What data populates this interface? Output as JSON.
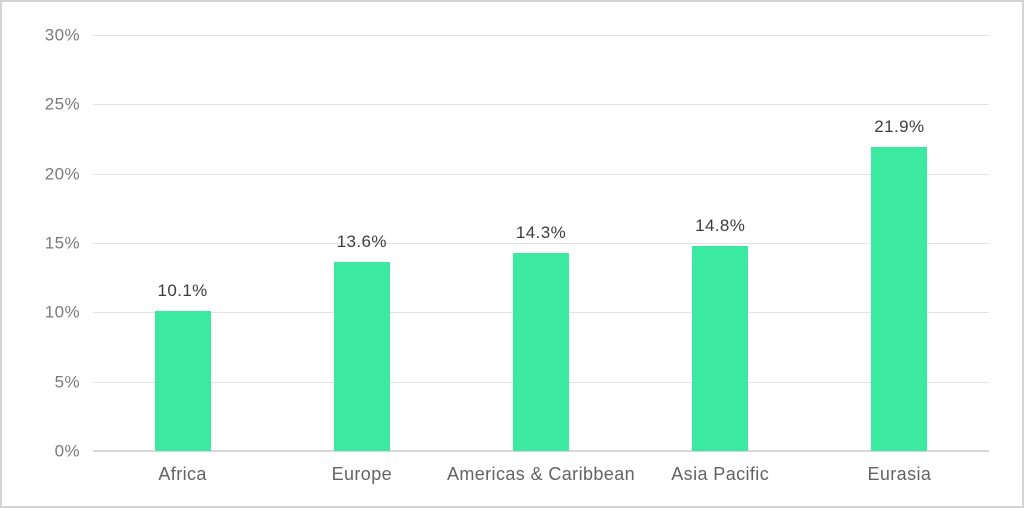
{
  "chart": {
    "background_color": "#ffffff",
    "border_color": "#d4d4d4",
    "bar_color": "#3ce9a0",
    "gridline_color": "#e3e3e3",
    "baseline_color": "#d8d8d8",
    "y_tick_label_color": "#7a7a7a",
    "category_label_color": "#636363",
    "value_label_color": "#3d3d3d"
  },
  "chart_data": {
    "type": "bar",
    "title": "",
    "xlabel": "",
    "ylabel": "",
    "categories": [
      "Africa",
      "Europe",
      "Americas & Caribbean",
      "Asia Pacific",
      "Eurasia"
    ],
    "values": [
      10.1,
      13.6,
      14.3,
      14.8,
      21.9
    ],
    "value_labels": [
      "10.1%",
      "13.6%",
      "14.3%",
      "14.8%",
      "21.9%"
    ],
    "y_ticks": [
      0,
      5,
      10,
      15,
      20,
      25,
      30
    ],
    "y_tick_labels": [
      "0%",
      "5%",
      "10%",
      "15%",
      "20%",
      "25%",
      "30%"
    ],
    "ylim": [
      0,
      30
    ],
    "grid": "horizontal",
    "legend": "none"
  }
}
